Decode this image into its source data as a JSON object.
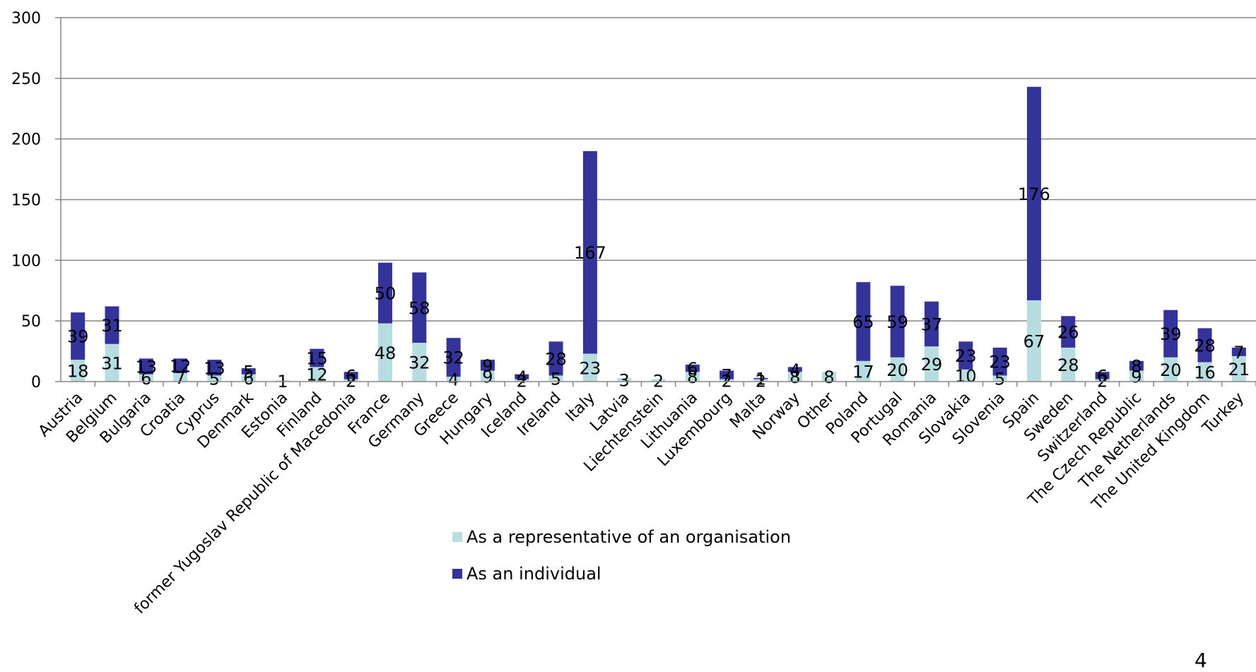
{
  "chart_data": {
    "type": "bar",
    "stacked": true,
    "categories": [
      "Austria",
      "Belgium",
      "Bulgaria",
      "Croatia",
      "Cyprus",
      "Denmark",
      "Estonia",
      "Finland",
      "former Yugoslav Republic of Macedonia",
      "France",
      "Germany",
      "Greece",
      "Hungary",
      "Iceland",
      "Ireland",
      "Italy",
      "Latvia",
      "Liechtenstein",
      "Lithuania",
      "Luxembourg",
      "Malta",
      "Norway",
      "Other",
      "Poland",
      "Portugal",
      "Romania",
      "Slovakia",
      "Slovenia",
      "Spain",
      "Sweden",
      "Switzerland",
      "The Czech Republic",
      "The Netherlands",
      "The United Kingdom",
      "Turkey"
    ],
    "series": [
      {
        "name": "As a representative of an organisation",
        "color": "#b7dde1",
        "values": [
          18,
          31,
          6,
          7,
          5,
          6,
          1,
          12,
          2,
          48,
          32,
          4,
          9,
          2,
          5,
          23,
          3,
          2,
          8,
          2,
          2,
          8,
          8,
          17,
          20,
          29,
          10,
          5,
          67,
          28,
          2,
          9,
          20,
          16,
          21
        ]
      },
      {
        "name": "As an individual",
        "color": "#333399",
        "values": [
          39,
          31,
          13,
          12,
          13,
          5,
          0,
          15,
          6,
          50,
          58,
          32,
          9,
          4,
          28,
          167,
          0,
          0,
          6,
          7,
          1,
          4,
          0,
          65,
          59,
          37,
          23,
          23,
          176,
          26,
          6,
          8,
          39,
          28,
          7
        ]
      }
    ],
    "ylim": [
      0,
      300
    ],
    "yticks": [
      0,
      50,
      100,
      150,
      200,
      250,
      300
    ],
    "grid": true,
    "legend_position": "bottom",
    "title": "",
    "xlabel": "",
    "ylabel": ""
  },
  "page_number": "4",
  "colors": {
    "grid": "#868686",
    "axis": "#868686"
  }
}
